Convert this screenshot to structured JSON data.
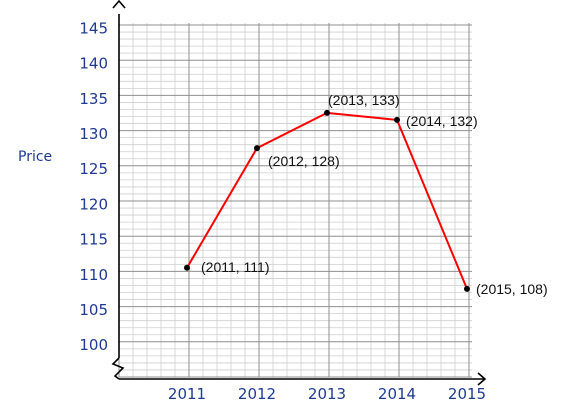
{
  "chart_data": {
    "type": "line",
    "title": "",
    "xlabel": "",
    "ylabel": "Price",
    "ylim": [
      95,
      145
    ],
    "xlim": [
      2011,
      2015
    ],
    "grid": true,
    "x": [
      2011,
      2012,
      2013,
      2014,
      2015
    ],
    "x_tick_labels": [
      "2011",
      "2012",
      "2013",
      "2014",
      "2015"
    ],
    "y_ticks": [
      100,
      105,
      110,
      115,
      120,
      125,
      130,
      135,
      140,
      145
    ],
    "y_tick_labels": [
      "100",
      "105",
      "110",
      "115",
      "120",
      "125",
      "130",
      "135",
      "140",
      "145"
    ],
    "series": [
      {
        "values": [
          111,
          128,
          133,
          132,
          108
        ]
      }
    ],
    "point_labels": [
      "(2011, 111)",
      "(2012, 128)",
      "(2013, 133)",
      "(2014, 132)",
      "(2015, 108)"
    ],
    "line_color": "#ff0000",
    "marker_color": "#000000",
    "axis_text_color": "#1f3a93"
  }
}
